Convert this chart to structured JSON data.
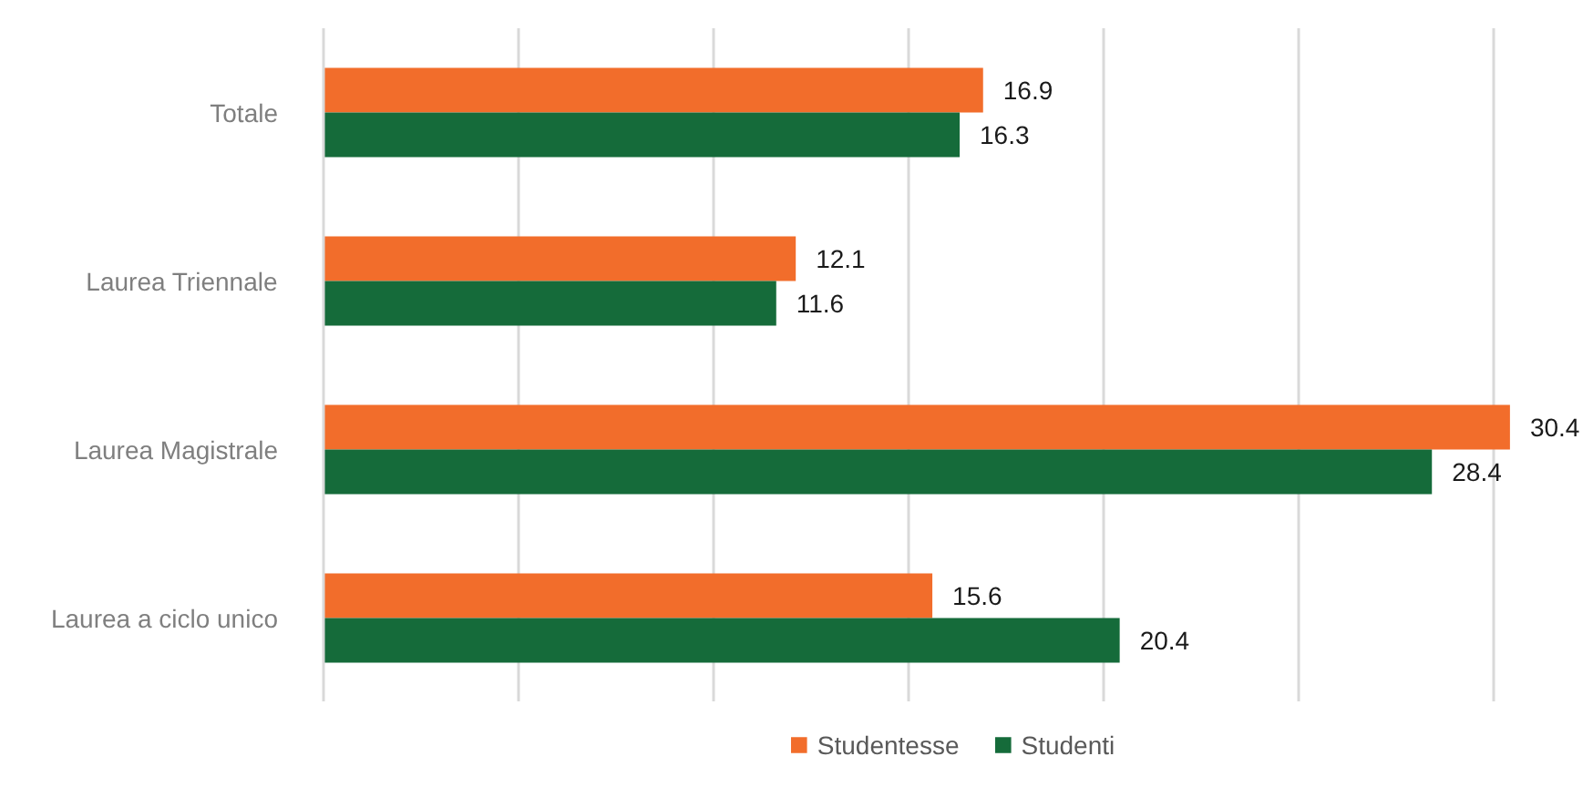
{
  "chart_data": {
    "type": "bar",
    "orientation": "horizontal",
    "categories": [
      "Totale",
      "Laurea Triennale",
      "Laurea Magistrale",
      "Laurea a ciclo unico"
    ],
    "series": [
      {
        "name": "Studentesse",
        "color": "#f26d2b",
        "values": [
          16.9,
          12.1,
          30.4,
          15.6
        ]
      },
      {
        "name": "Studenti",
        "color": "#156b3a",
        "values": [
          16.3,
          11.6,
          28.4,
          20.4
        ]
      }
    ],
    "grid": "x",
    "legend": "bottom",
    "data_labels": true,
    "tick_labels": "y"
  }
}
